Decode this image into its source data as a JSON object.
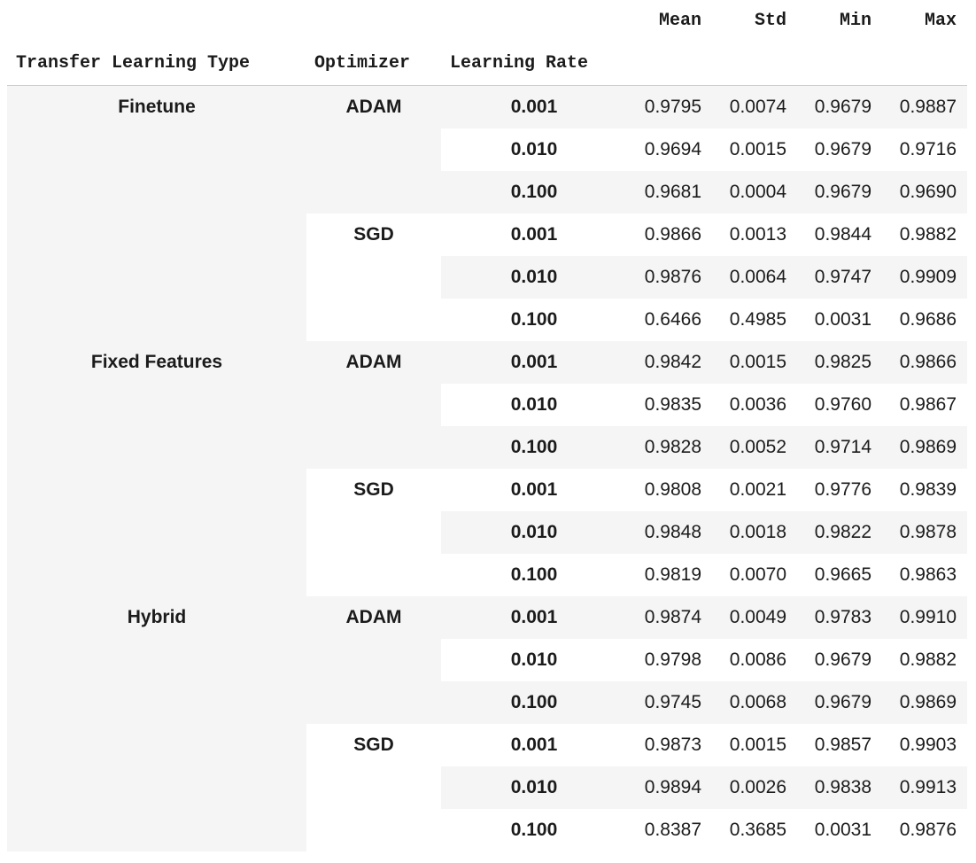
{
  "columns": {
    "stats": [
      "Mean",
      "Std",
      "Min",
      "Max"
    ],
    "index": [
      "Transfer Learning Type",
      "Optimizer",
      "Learning Rate"
    ]
  },
  "colors": {
    "stripe": "#f5f5f5",
    "white": "#ffffff",
    "rule": "#cfcfcf",
    "text": "#1b1b1b"
  },
  "rows": [
    {
      "transfer_type": "Finetune",
      "optimizer": "ADAM",
      "lr": "0.001",
      "mean": "0.9795",
      "std": "0.0074",
      "min": "0.9679",
      "max": "0.9887"
    },
    {
      "transfer_type": "",
      "optimizer": "",
      "lr": "0.010",
      "mean": "0.9694",
      "std": "0.0015",
      "min": "0.9679",
      "max": "0.9716"
    },
    {
      "transfer_type": "",
      "optimizer": "",
      "lr": "0.100",
      "mean": "0.9681",
      "std": "0.0004",
      "min": "0.9679",
      "max": "0.9690"
    },
    {
      "transfer_type": "",
      "optimizer": "SGD",
      "lr": "0.001",
      "mean": "0.9866",
      "std": "0.0013",
      "min": "0.9844",
      "max": "0.9882"
    },
    {
      "transfer_type": "",
      "optimizer": "",
      "lr": "0.010",
      "mean": "0.9876",
      "std": "0.0064",
      "min": "0.9747",
      "max": "0.9909"
    },
    {
      "transfer_type": "",
      "optimizer": "",
      "lr": "0.100",
      "mean": "0.6466",
      "std": "0.4985",
      "min": "0.0031",
      "max": "0.9686"
    },
    {
      "transfer_type": "Fixed Features",
      "optimizer": "ADAM",
      "lr": "0.001",
      "mean": "0.9842",
      "std": "0.0015",
      "min": "0.9825",
      "max": "0.9866"
    },
    {
      "transfer_type": "",
      "optimizer": "",
      "lr": "0.010",
      "mean": "0.9835",
      "std": "0.0036",
      "min": "0.9760",
      "max": "0.9867"
    },
    {
      "transfer_type": "",
      "optimizer": "",
      "lr": "0.100",
      "mean": "0.9828",
      "std": "0.0052",
      "min": "0.9714",
      "max": "0.9869"
    },
    {
      "transfer_type": "",
      "optimizer": "SGD",
      "lr": "0.001",
      "mean": "0.9808",
      "std": "0.0021",
      "min": "0.9776",
      "max": "0.9839"
    },
    {
      "transfer_type": "",
      "optimizer": "",
      "lr": "0.010",
      "mean": "0.9848",
      "std": "0.0018",
      "min": "0.9822",
      "max": "0.9878"
    },
    {
      "transfer_type": "",
      "optimizer": "",
      "lr": "0.100",
      "mean": "0.9819",
      "std": "0.0070",
      "min": "0.9665",
      "max": "0.9863"
    },
    {
      "transfer_type": "Hybrid",
      "optimizer": "ADAM",
      "lr": "0.001",
      "mean": "0.9874",
      "std": "0.0049",
      "min": "0.9783",
      "max": "0.9910"
    },
    {
      "transfer_type": "",
      "optimizer": "",
      "lr": "0.010",
      "mean": "0.9798",
      "std": "0.0086",
      "min": "0.9679",
      "max": "0.9882"
    },
    {
      "transfer_type": "",
      "optimizer": "",
      "lr": "0.100",
      "mean": "0.9745",
      "std": "0.0068",
      "min": "0.9679",
      "max": "0.9869"
    },
    {
      "transfer_type": "",
      "optimizer": "SGD",
      "lr": "0.001",
      "mean": "0.9873",
      "std": "0.0015",
      "min": "0.9857",
      "max": "0.9903"
    },
    {
      "transfer_type": "",
      "optimizer": "",
      "lr": "0.010",
      "mean": "0.9894",
      "std": "0.0026",
      "min": "0.9838",
      "max": "0.9913"
    },
    {
      "transfer_type": "",
      "optimizer": "",
      "lr": "0.100",
      "mean": "0.8387",
      "std": "0.3685",
      "min": "0.0031",
      "max": "0.9876"
    }
  ]
}
